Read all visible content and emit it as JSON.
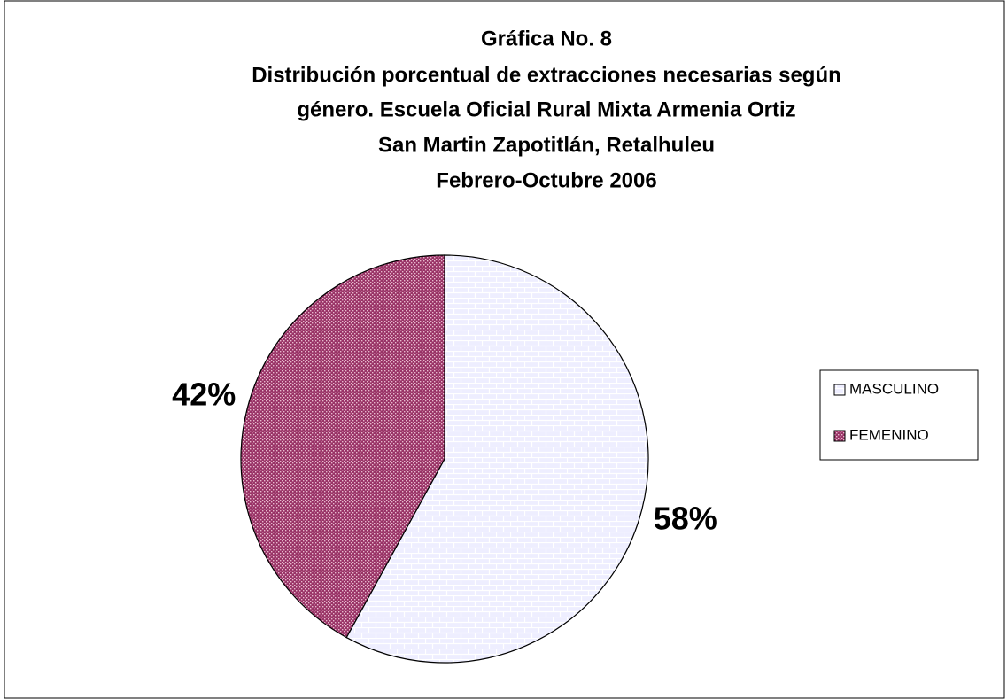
{
  "chart_data": {
    "type": "pie",
    "title": [
      "Gráfica No. 8",
      "Distribución porcentual de extracciones necesarias según",
      "género.  Escuela Oficial Rural Mixta Armenia Ortiz",
      "San Martin Zapotitlán, Retalhuleu",
      "Febrero-Octubre 2006"
    ],
    "categories": [
      "MASCULINO",
      "FEMENINO"
    ],
    "values": [
      58,
      42
    ],
    "value_labels": [
      "58%",
      "42%"
    ],
    "colors": [
      "#eeeeff",
      "#993366"
    ],
    "legend": "right"
  }
}
